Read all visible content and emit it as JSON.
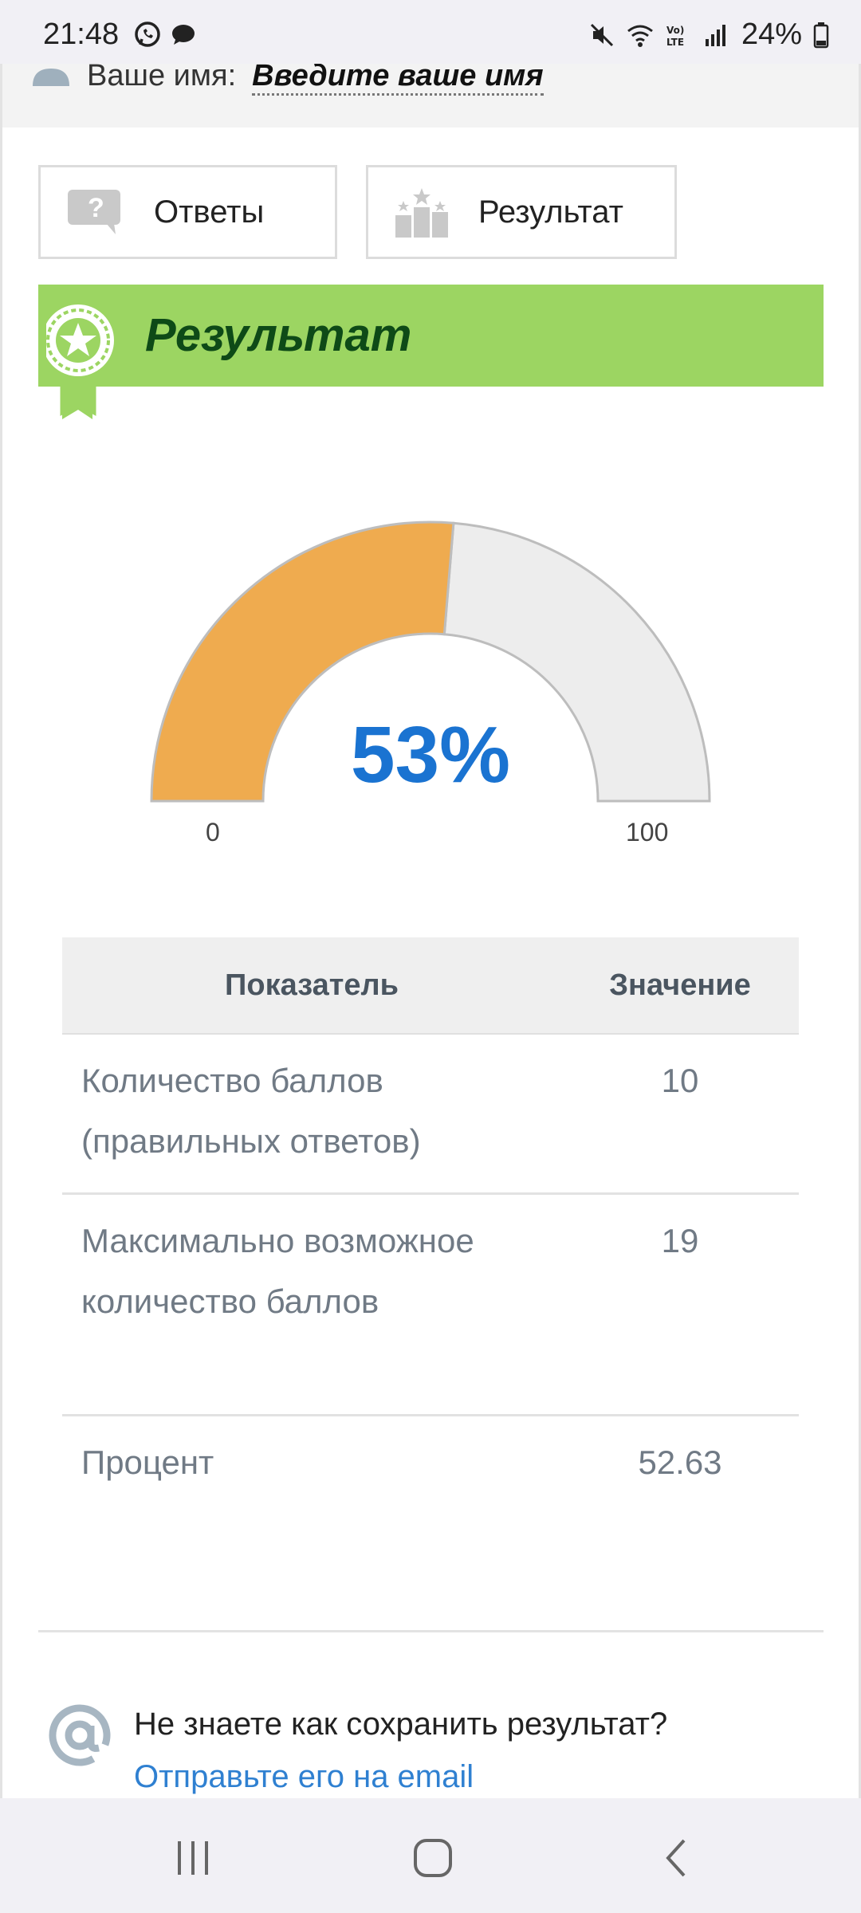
{
  "status_bar": {
    "time": "21:48",
    "battery": "24%",
    "icons": [
      "whatsapp-icon",
      "chat-icon",
      "mute-icon",
      "wifi-icon",
      "volte-icon",
      "signal-icon",
      "battery-icon"
    ]
  },
  "name_row": {
    "label": "Ваше имя:",
    "placeholder": "Введите ваше имя"
  },
  "tabs": [
    {
      "label": "Ответы",
      "icon": "question-bubble-icon"
    },
    {
      "label": "Результат",
      "icon": "podium-icon"
    }
  ],
  "banner": {
    "title": "Результат",
    "icon": "award-ribbon-icon"
  },
  "gauge": {
    "value_label": "53%",
    "fraction": 0.5263,
    "min_label": "0",
    "max_label": "100",
    "fill_color": "#efab4f",
    "track_color": "#ededed"
  },
  "table": {
    "headers": [
      "Показатель",
      "Значение"
    ],
    "rows": [
      {
        "label": "Количество баллов (правильных ответов)",
        "value": "10"
      },
      {
        "label": "Максимально возможное количество баллов",
        "value": "19"
      },
      {
        "label": "Процент",
        "value": "52.63"
      }
    ]
  },
  "email": {
    "question": "Не знаете как сохранить результат?",
    "link": "Отправьте его на email",
    "icon": "at-sign-icon"
  },
  "nav": [
    "recents-icon",
    "home-icon",
    "back-icon"
  ]
}
